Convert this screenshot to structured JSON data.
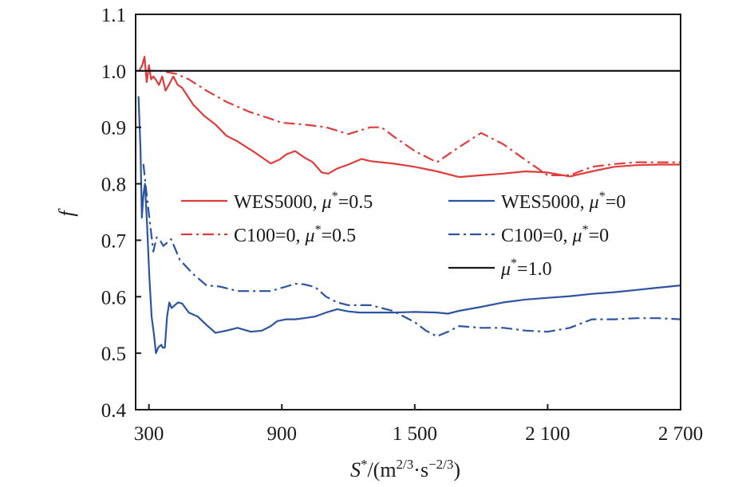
{
  "chart_data": {
    "type": "line",
    "xlabel": {
      "main": "S",
      "sup1": "*",
      "rest": "/(m",
      "sup2": "2/3",
      "dot": "·s",
      "sup3": "−2/3",
      "close": ")"
    },
    "ylabel": "f",
    "xlim": [
      240,
      2700
    ],
    "ylim": [
      0.4,
      1.1
    ],
    "x_ticks": [
      300,
      900,
      1500,
      2100,
      2700
    ],
    "x_tick_labels": [
      "300",
      "900",
      "1 500",
      "2 100",
      "2 700"
    ],
    "y_ticks": [
      0.4,
      0.5,
      0.6,
      0.7,
      0.8,
      0.9,
      1.0,
      1.1
    ],
    "y_tick_labels": [
      "0.4",
      "0.5",
      "0.6",
      "0.7",
      "0.8",
      "0.9",
      "1.0",
      "1.1"
    ],
    "legend_position": "center",
    "series": [
      {
        "label": {
          "name": "WES5000, ",
          "mu": "μ",
          "sup": "*",
          "val": "=0.5"
        },
        "color": "#e03c3c",
        "style": "solid",
        "x": [
          256,
          270,
          280,
          290,
          300,
          310,
          320,
          330,
          345,
          360,
          375,
          390,
          410,
          430,
          450,
          500,
          550,
          600,
          650,
          700,
          780,
          850,
          890,
          920,
          960,
          1000,
          1040,
          1080,
          1110,
          1150,
          1200,
          1260,
          1300,
          1400,
          1500,
          1600,
          1700,
          1800,
          1900,
          2000,
          2100,
          2200,
          2300,
          2400,
          2500,
          2600,
          2700
        ],
        "y": [
          1.0,
          1.01,
          1.025,
          0.98,
          1.01,
          0.985,
          0.99,
          0.985,
          0.975,
          0.99,
          0.965,
          0.975,
          0.99,
          0.975,
          0.97,
          0.94,
          0.92,
          0.905,
          0.885,
          0.875,
          0.855,
          0.836,
          0.843,
          0.852,
          0.858,
          0.847,
          0.838,
          0.82,
          0.818,
          0.827,
          0.834,
          0.844,
          0.84,
          0.836,
          0.83,
          0.822,
          0.812,
          0.815,
          0.818,
          0.822,
          0.82,
          0.813,
          0.822,
          0.83,
          0.833,
          0.834,
          0.834
        ]
      },
      {
        "label": {
          "name": "WES5000, ",
          "mu": "μ",
          "sup": "*",
          "val": "=0"
        },
        "color": "#2d54a3",
        "style": "solid",
        "x": [
          253,
          262,
          268,
          275,
          282,
          292,
          302,
          312,
          322,
          332,
          342,
          356,
          362,
          372,
          382,
          392,
          402,
          417,
          432,
          450,
          480,
          520,
          560,
          600,
          650,
          700,
          760,
          810,
          850,
          880,
          920,
          960,
          1000,
          1050,
          1100,
          1150,
          1200,
          1250,
          1300,
          1400,
          1500,
          1600,
          1650,
          1700,
          1800,
          1900,
          2000,
          2100,
          2200,
          2300,
          2400,
          2500,
          2600,
          2700
        ],
        "y": [
          0.955,
          0.86,
          0.74,
          0.78,
          0.8,
          0.725,
          0.635,
          0.565,
          0.535,
          0.5,
          0.51,
          0.515,
          0.51,
          0.51,
          0.565,
          0.59,
          0.58,
          0.585,
          0.59,
          0.588,
          0.572,
          0.565,
          0.55,
          0.536,
          0.54,
          0.545,
          0.538,
          0.54,
          0.548,
          0.557,
          0.56,
          0.56,
          0.562,
          0.565,
          0.572,
          0.578,
          0.574,
          0.572,
          0.572,
          0.572,
          0.573,
          0.572,
          0.57,
          0.575,
          0.582,
          0.59,
          0.595,
          0.598,
          0.601,
          0.605,
          0.608,
          0.612,
          0.616,
          0.62
        ]
      },
      {
        "label": {
          "name": "C100=0, ",
          "mu": "μ",
          "sup": "*",
          "val": "=0.5"
        },
        "color": "#e03c3c",
        "style": "dashdot",
        "x": [
          280,
          350,
          420,
          480,
          560,
          650,
          750,
          850,
          900,
          1000,
          1100,
          1200,
          1300,
          1350,
          1400,
          1500,
          1600,
          1700,
          1800,
          1900,
          2000,
          2100,
          2200,
          2300,
          2400,
          2500,
          2600,
          2700
        ],
        "y": [
          1.0,
          1.0,
          0.995,
          0.985,
          0.965,
          0.945,
          0.928,
          0.915,
          0.908,
          0.905,
          0.9,
          0.888,
          0.9,
          0.9,
          0.885,
          0.858,
          0.838,
          0.865,
          0.89,
          0.87,
          0.842,
          0.815,
          0.815,
          0.83,
          0.835,
          0.838,
          0.838,
          0.838
        ]
      },
      {
        "label": {
          "name": "C100=0, ",
          "mu": "μ",
          "sup": "*",
          "val": "=0"
        },
        "color": "#2d54a3",
        "style": "dashdot",
        "x": [
          275,
          290,
          305,
          320,
          335,
          350,
          365,
          380,
          400,
          440,
          500,
          560,
          620,
          700,
          780,
          850,
          920,
          960,
          1000,
          1050,
          1100,
          1150,
          1200,
          1300,
          1400,
          1500,
          1550,
          1600,
          1650,
          1700,
          1800,
          1900,
          2000,
          2100,
          2200,
          2300,
          2400,
          2500,
          2600,
          2700
        ],
        "y": [
          0.835,
          0.78,
          0.73,
          0.68,
          0.705,
          0.7,
          0.69,
          0.695,
          0.702,
          0.665,
          0.64,
          0.62,
          0.618,
          0.61,
          0.61,
          0.61,
          0.618,
          0.623,
          0.622,
          0.617,
          0.6,
          0.59,
          0.585,
          0.585,
          0.575,
          0.555,
          0.54,
          0.53,
          0.538,
          0.548,
          0.545,
          0.545,
          0.54,
          0.538,
          0.545,
          0.56,
          0.56,
          0.562,
          0.562,
          0.56
        ]
      },
      {
        "label": {
          "name": "",
          "mu": "μ",
          "sup": "*",
          "val": "=1.0"
        },
        "color": "#1a1a1a",
        "style": "solid",
        "x": [
          240,
          2700
        ],
        "y": [
          1.0,
          1.0
        ]
      }
    ]
  }
}
